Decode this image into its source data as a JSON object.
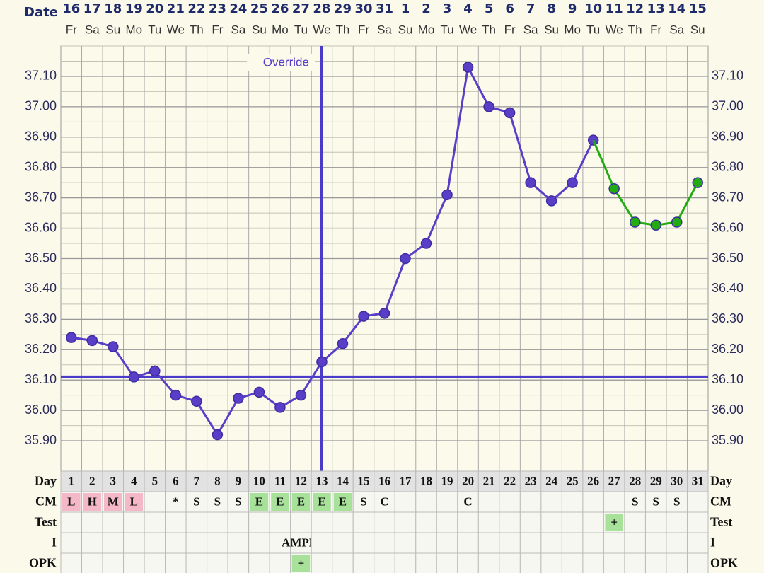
{
  "chart_data": {
    "type": "line",
    "x_label": "Date",
    "categories": [
      "16",
      "17",
      "18",
      "19",
      "20",
      "21",
      "22",
      "23",
      "24",
      "25",
      "26",
      "27",
      "28",
      "29",
      "30",
      "31",
      "1",
      "2",
      "3",
      "4",
      "5",
      "6",
      "7",
      "8",
      "9",
      "10",
      "11",
      "12",
      "13",
      "14",
      "15"
    ],
    "weekdays": [
      "Fr",
      "Sa",
      "Su",
      "Mo",
      "Tu",
      "We",
      "Th",
      "Fr",
      "Sa",
      "Su",
      "Mo",
      "Tu",
      "We",
      "Th",
      "Fr",
      "Sa",
      "Su",
      "Mo",
      "Tu",
      "We",
      "Th",
      "Fr",
      "Sa",
      "Su",
      "Mo",
      "Tu",
      "We",
      "Th",
      "Fr",
      "Sa",
      "Su"
    ],
    "ylim": [
      35.8,
      37.2
    ],
    "yticks": [
      {
        "value": 35.9,
        "label": "35.90"
      },
      {
        "value": 36.0,
        "label": "36.00"
      },
      {
        "value": 36.1,
        "label": "36.10"
      },
      {
        "value": 36.2,
        "label": "36.20"
      },
      {
        "value": 36.3,
        "label": "36.30"
      },
      {
        "value": 36.4,
        "label": "36.40"
      },
      {
        "value": 36.5,
        "label": "36.50"
      },
      {
        "value": 36.6,
        "label": "36.60"
      },
      {
        "value": 36.7,
        "label": "36.70"
      },
      {
        "value": 36.8,
        "label": "36.80"
      },
      {
        "value": 36.9,
        "label": "36.90"
      },
      {
        "value": 37.0,
        "label": "37.00"
      },
      {
        "value": 37.1,
        "label": "37.10"
      }
    ],
    "grid": true,
    "series": [
      {
        "color": "#5a3ec8",
        "values": [
          36.24,
          36.23,
          36.21,
          36.11,
          36.13,
          36.05,
          36.03,
          35.92,
          36.04,
          36.06,
          36.01,
          36.05,
          36.16,
          36.22,
          36.31,
          36.32,
          36.5,
          36.55,
          36.71,
          37.13,
          37.0,
          36.98,
          36.75,
          36.69,
          36.75,
          36.89,
          null,
          null,
          null,
          null,
          null
        ]
      },
      {
        "color": "#22aa11",
        "values": [
          null,
          null,
          null,
          null,
          null,
          null,
          null,
          null,
          null,
          null,
          null,
          null,
          null,
          null,
          null,
          null,
          null,
          null,
          null,
          null,
          null,
          null,
          null,
          null,
          null,
          null,
          36.73,
          36.62,
          36.61,
          36.62,
          36.75
        ]
      }
    ],
    "coverline": 36.11,
    "override": {
      "label": "Override",
      "index": 12
    }
  },
  "table": {
    "rows": [
      {
        "label": "Day",
        "cells": [
          "1",
          "2",
          "3",
          "4",
          "5",
          "6",
          "7",
          "8",
          "9",
          "10",
          "11",
          "12",
          "13",
          "14",
          "15",
          "16",
          "17",
          "18",
          "19",
          "20",
          "21",
          "22",
          "23",
          "24",
          "25",
          "26",
          "27",
          "28",
          "29",
          "30",
          "31"
        ]
      },
      {
        "label": "CM",
        "cells": [
          {
            "text": "L",
            "color": "#f5b8c9"
          },
          {
            "text": "H",
            "color": "#f5b8c9"
          },
          {
            "text": "M",
            "color": "#f5b8c9"
          },
          {
            "text": "L",
            "color": "#f5b8c9"
          },
          null,
          {
            "text": "*"
          },
          {
            "text": "S"
          },
          {
            "text": "S"
          },
          {
            "text": "S"
          },
          {
            "text": "E",
            "color": "#a8e29a"
          },
          {
            "text": "E",
            "color": "#a8e29a"
          },
          {
            "text": "E",
            "color": "#a8e29a"
          },
          {
            "text": "E",
            "color": "#a8e29a"
          },
          {
            "text": "E",
            "color": "#a8e29a"
          },
          {
            "text": "S"
          },
          {
            "text": "C"
          },
          null,
          null,
          null,
          {
            "text": "C"
          },
          null,
          null,
          null,
          null,
          null,
          null,
          null,
          {
            "text": "S"
          },
          {
            "text": "S"
          },
          {
            "text": "S"
          },
          null
        ]
      },
      {
        "label": "Test",
        "cells": [
          null,
          null,
          null,
          null,
          null,
          null,
          null,
          null,
          null,
          null,
          null,
          null,
          null,
          null,
          null,
          null,
          null,
          null,
          null,
          null,
          null,
          null,
          null,
          null,
          null,
          null,
          {
            "text": "+",
            "color": "#a8e29a"
          },
          null,
          null,
          null,
          null
        ]
      },
      {
        "label": "I",
        "cells": [
          null,
          null,
          null,
          null,
          null,
          null,
          null,
          null,
          null,
          null,
          null,
          {
            "text": "AMPM"
          },
          null,
          null,
          null,
          null,
          null,
          null,
          null,
          null,
          null,
          null,
          null,
          null,
          null,
          null,
          null,
          null,
          null,
          null,
          null
        ]
      },
      {
        "label": "OPK",
        "cells": [
          null,
          null,
          null,
          null,
          null,
          null,
          null,
          null,
          null,
          null,
          null,
          {
            "text": "+",
            "color": "#a8e29a"
          },
          null,
          null,
          null,
          null,
          null,
          null,
          null,
          null,
          null,
          null,
          null,
          null,
          null,
          null,
          null,
          null,
          null,
          null,
          null
        ]
      }
    ]
  }
}
